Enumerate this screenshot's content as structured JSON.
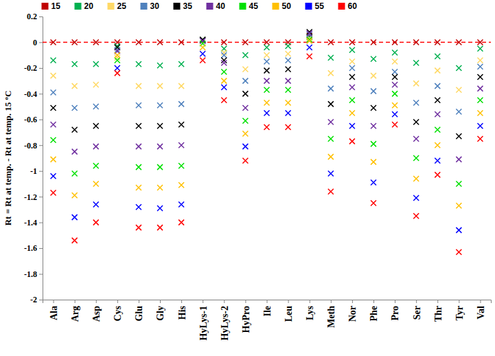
{
  "chart_data": {
    "type": "scatter",
    "y_label": "Rt = Rt at temp. - Rt at temp. 15 ºC",
    "categories": [
      "Ala",
      "Arg",
      "Asp",
      "Cys",
      "Glu",
      "Gly",
      "His",
      "HyLys-1",
      "HyLys-2",
      "HyPro",
      "Ile",
      "Leu",
      "Lys",
      "Meth",
      "Nor",
      "Phe",
      "Pro",
      "Ser",
      "Thr",
      "Tyr",
      "Val"
    ],
    "marker": "x",
    "grid": false,
    "legend": "top",
    "ylim": [
      -2,
      0.2
    ],
    "yticks": [
      0.2,
      0,
      -0.2,
      -0.4,
      -0.6,
      -0.8,
      -1,
      -1.2,
      -1.4,
      -1.6,
      -1.8,
      -2
    ],
    "reference_line": {
      "value": 0,
      "color": "#ff0000",
      "line_style": "dashed"
    },
    "series": [
      {
        "name": "15",
        "color": "#c00000",
        "values": [
          0,
          0,
          0,
          0,
          0,
          0,
          0,
          0.02,
          0,
          0,
          0,
          0,
          0.05,
          0,
          0,
          0,
          0,
          0,
          0,
          0,
          0
        ]
      },
      {
        "name": "20",
        "color": "#00b050",
        "values": [
          -0.14,
          -0.17,
          -0.17,
          -0.03,
          -0.17,
          -0.18,
          -0.17,
          0.02,
          -0.05,
          -0.1,
          -0.04,
          -0.03,
          0.04,
          -0.12,
          -0.06,
          -0.13,
          -0.08,
          -0.16,
          -0.11,
          -0.2,
          -0.05
        ]
      },
      {
        "name": "25",
        "color": "#ffd966",
        "values": [
          -0.26,
          -0.34,
          -0.33,
          -0.12,
          -0.34,
          -0.34,
          -0.34,
          0.01,
          -0.08,
          -0.21,
          -0.1,
          -0.09,
          0.03,
          -0.24,
          -0.15,
          -0.26,
          -0.15,
          -0.32,
          -0.22,
          -0.37,
          -0.14
        ]
      },
      {
        "name": "30",
        "color": "#4f81bd",
        "values": [
          -0.39,
          -0.51,
          -0.5,
          -0.06,
          -0.49,
          -0.49,
          -0.48,
          0.01,
          -0.1,
          -0.3,
          -0.15,
          -0.14,
          0.06,
          -0.36,
          -0.2,
          -0.38,
          -0.23,
          -0.47,
          -0.34,
          -0.54,
          -0.19
        ]
      },
      {
        "name": "35",
        "color": "#000000",
        "values": [
          -0.51,
          -0.68,
          -0.65,
          -0.04,
          -0.65,
          -0.65,
          -0.64,
          0.02,
          -0.14,
          -0.4,
          -0.22,
          -0.21,
          0.08,
          -0.48,
          -0.27,
          -0.51,
          -0.27,
          -0.62,
          -0.45,
          -0.73,
          -0.27
        ]
      },
      {
        "name": "40",
        "color": "#7030a0",
        "values": [
          -0.64,
          -0.85,
          -0.81,
          -0.07,
          -0.81,
          -0.81,
          -0.8,
          0.01,
          -0.16,
          -0.51,
          -0.3,
          -0.3,
          0.07,
          -0.62,
          -0.35,
          -0.65,
          -0.33,
          -0.75,
          -0.56,
          -0.91,
          -0.36
        ]
      },
      {
        "name": "45",
        "color": "#00e000",
        "values": [
          -0.76,
          -1.02,
          -0.96,
          -0.14,
          -0.97,
          -0.97,
          -0.96,
          -0.01,
          -0.23,
          -0.61,
          -0.37,
          -0.37,
          0.02,
          -0.75,
          -0.45,
          -0.79,
          -0.4,
          -0.9,
          -0.68,
          -1.1,
          -0.45
        ]
      },
      {
        "name": "50",
        "color": "#ffc000",
        "values": [
          -0.91,
          -1.19,
          -1.1,
          -0.1,
          -1.13,
          -1.13,
          -1.11,
          -0.04,
          -0.3,
          -0.71,
          -0.47,
          -0.47,
          0.01,
          -0.89,
          -0.55,
          -0.93,
          -0.49,
          -1.06,
          -0.8,
          -1.27,
          -0.55
        ]
      },
      {
        "name": "55",
        "color": "#0000ff",
        "values": [
          -1.04,
          -1.36,
          -1.26,
          -0.2,
          -1.28,
          -1.29,
          -1.26,
          -0.09,
          -0.35,
          -0.81,
          -0.55,
          -0.55,
          -0.04,
          -1.02,
          -0.65,
          -1.09,
          -0.56,
          -1.21,
          -0.92,
          -1.46,
          -0.65
        ]
      },
      {
        "name": "60",
        "color": "#ff0000",
        "values": [
          -1.17,
          -1.54,
          -1.4,
          -0.24,
          -1.44,
          -1.44,
          -1.4,
          -0.14,
          -0.45,
          -0.92,
          -0.66,
          -0.66,
          -0.11,
          -1.16,
          -0.77,
          -1.25,
          -0.64,
          -1.35,
          -1.03,
          -1.63,
          -0.75
        ]
      }
    ]
  }
}
